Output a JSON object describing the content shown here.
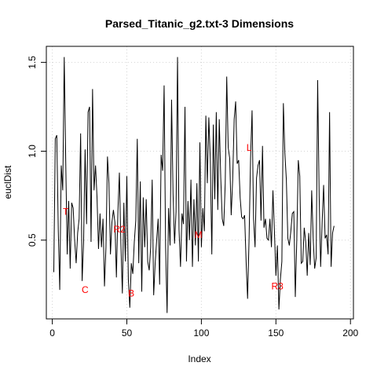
{
  "chart_data": {
    "type": "line",
    "title": "Parsed_Titanic_g2.txt-3 Dimensions",
    "xlabel": "Index",
    "ylabel": "euclDist",
    "xlim": [
      -4,
      202
    ],
    "ylim": [
      0.057,
      1.59
    ],
    "x_ticks": [
      0,
      50,
      100,
      150,
      200
    ],
    "y_ticks": [
      0.5,
      1.0,
      1.5
    ],
    "x_tick_labels": [
      "0",
      "50",
      "100",
      "150",
      "200"
    ],
    "y_tick_labels": [
      "0.5",
      "1.0",
      "1.5"
    ],
    "grid": true,
    "line_color": "#000000",
    "annotation_color": "#ff0000",
    "annotations": [
      {
        "label": "T",
        "x": 9,
        "y": 0.66
      },
      {
        "label": "C",
        "x": 22,
        "y": 0.22
      },
      {
        "label": "R2",
        "x": 45,
        "y": 0.56
      },
      {
        "label": "B",
        "x": 53,
        "y": 0.2
      },
      {
        "label": "M",
        "x": 98,
        "y": 0.53
      },
      {
        "label": "L",
        "x": 132,
        "y": 1.02
      },
      {
        "label": "R3",
        "x": 151,
        "y": 0.24
      }
    ],
    "series": [
      {
        "values": [
          0.32,
          1.07,
          1.09,
          0.56,
          0.22,
          0.92,
          0.78,
          1.53,
          0.95,
          0.42,
          0.72,
          0.34,
          0.71,
          0.68,
          0.5,
          0.37,
          0.54,
          0.62,
          1.1,
          0.27,
          0.49,
          1.01,
          0.59,
          1.22,
          1.25,
          0.49,
          1.35,
          0.78,
          0.92,
          0.74,
          0.45,
          0.65,
          0.46,
          0.62,
          0.24,
          0.46,
          0.97,
          0.82,
          0.42,
          0.6,
          0.67,
          0.6,
          0.29,
          0.66,
          0.88,
          0.48,
          0.2,
          0.71,
          0.38,
          0.86,
          0.28,
          0.12,
          0.37,
          0.31,
          0.49,
          0.61,
          1.07,
          0.37,
          0.83,
          0.21,
          0.74,
          0.46,
          0.73,
          0.38,
          0.33,
          0.46,
          0.84,
          0.19,
          0.37,
          0.5,
          0.62,
          0.25,
          0.98,
          0.89,
          1.37,
          0.46,
          0.09,
          0.68,
          0.47,
          1.29,
          0.76,
          0.48,
          0.66,
          1.53,
          0.56,
          0.35,
          0.65,
          0.59,
          1.25,
          0.38,
          0.72,
          0.5,
          0.84,
          0.35,
          0.73,
          0.47,
          0.82,
          0.38,
          1.05,
          0.46,
          0.68,
          0.55,
          1.2,
          0.82,
          1.19,
          0.95,
          0.42,
          1.15,
          0.73,
          1.22,
          0.67,
          1.18,
          0.85,
          0.62,
          0.58,
          0.82,
          1.42,
          1.02,
          0.96,
          0.64,
          0.84,
          1.18,
          1.28,
          0.93,
          0.95,
          0.74,
          0.63,
          0.62,
          0.64,
          0.38,
          0.17,
          0.51,
          0.96,
          1.23,
          0.62,
          0.46,
          0.85,
          0.92,
          0.95,
          0.61,
          1.03,
          0.57,
          0.62,
          0.51,
          0.5,
          0.62,
          0.46,
          0.78,
          0.55,
          0.3,
          0.47,
          0.11,
          0.28,
          0.38,
          1.27,
          0.99,
          0.84,
          0.51,
          0.47,
          0.55,
          0.65,
          0.66,
          0.18,
          0.5,
          0.95,
          0.86,
          0.37,
          0.38,
          0.57,
          0.49,
          0.3,
          0.54,
          0.36,
          0.78,
          0.51,
          0.34,
          0.4,
          1.4,
          0.75,
          0.35,
          0.6,
          0.81,
          0.51,
          0.53,
          0.42,
          1.22,
          0.35,
          0.54,
          0.58
        ]
      }
    ]
  }
}
